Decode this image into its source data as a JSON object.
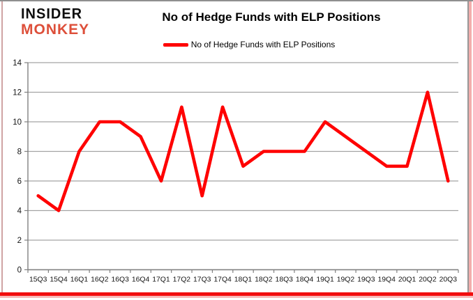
{
  "branding": {
    "line1": "INSIDER",
    "line2": "MONKEY"
  },
  "header": {
    "title": "No of Hedge Funds with ELP Positions"
  },
  "legend": {
    "label": "No of Hedge Funds with ELP Positions"
  },
  "chart_data": {
    "type": "line",
    "title": "No of Hedge Funds with ELP Positions",
    "categories": [
      "15Q3",
      "15Q4",
      "16Q1",
      "16Q2",
      "16Q3",
      "16Q4",
      "17Q1",
      "17Q2",
      "17Q3",
      "17Q4",
      "18Q1",
      "18Q2",
      "18Q3",
      "18Q4",
      "19Q1",
      "19Q2",
      "19Q3",
      "19Q4",
      "20Q1",
      "20Q2",
      "20Q3"
    ],
    "series": [
      {
        "name": "No of Hedge Funds with ELP Positions",
        "color": "#FF0000",
        "values": [
          5,
          4,
          8,
          10,
          10,
          9,
          6,
          11,
          5,
          11,
          7,
          8,
          8,
          8,
          10,
          9,
          8,
          7,
          7,
          12,
          6
        ]
      }
    ],
    "xlabel": "",
    "ylabel": "",
    "ylim": [
      0,
      14
    ],
    "ytick_step": 2,
    "grid": "horizontal",
    "legend_position": "top"
  },
  "colors": {
    "series_red": "#FF0000",
    "logo_red": "#dd4f3a",
    "grid_line": "#a3a3a3",
    "axis_line": "#808080",
    "label_text": "#141414",
    "frame_gray": "#8f8f8f",
    "frame_pink": "#f3aeac",
    "frame_bottom_red": "#f20d0d",
    "frame_bottom_pink": "#f7b9b7"
  }
}
